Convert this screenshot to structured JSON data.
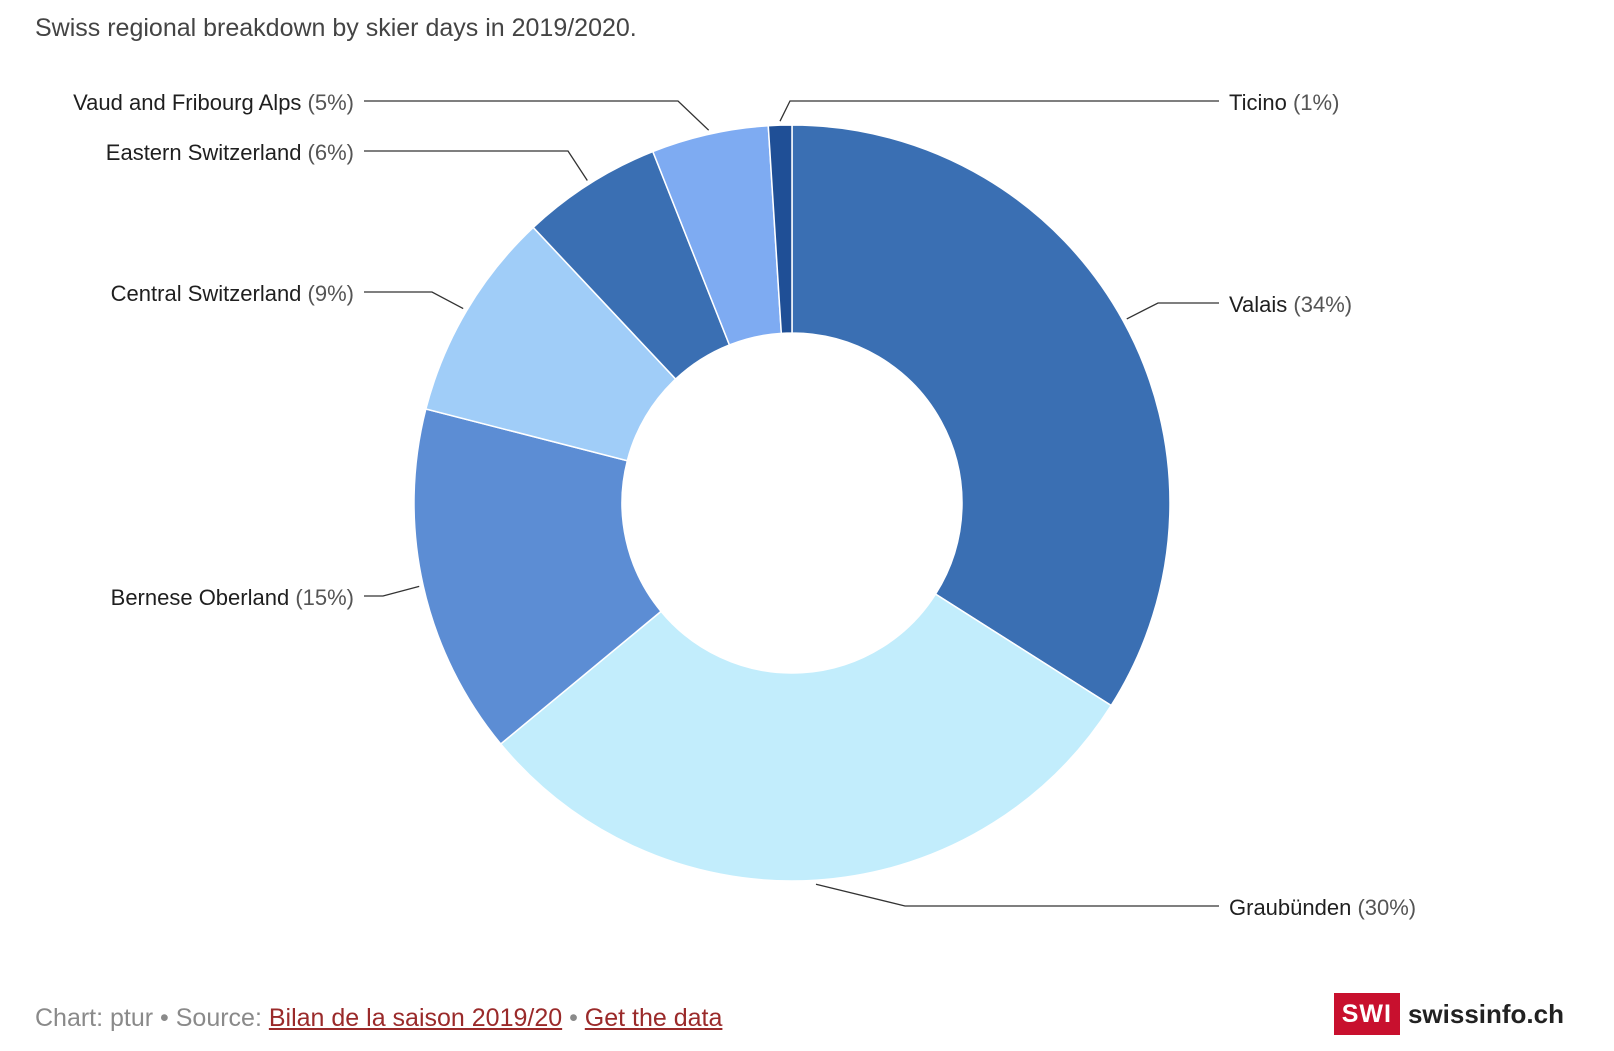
{
  "title": "Swiss regional breakdown by skier days in 2019/2020.",
  "chart_data": {
    "type": "pie",
    "donut": true,
    "start_angle": "12 o'clock, clockwise",
    "slices": [
      {
        "label": "Valais",
        "value": 34,
        "pct_text": "(34%)",
        "color": "#3a6fb3"
      },
      {
        "label": "Graubünden",
        "value": 30,
        "pct_text": "(30%)",
        "color": "#c2edfc"
      },
      {
        "label": "Bernese Oberland",
        "value": 15,
        "pct_text": "(15%)",
        "color": "#5c8dd4"
      },
      {
        "label": "Central Switzerland",
        "value": 9,
        "pct_text": "(9%)",
        "color": "#a0cdf8"
      },
      {
        "label": "Eastern Switzerland",
        "value": 6,
        "pct_text": "(6%)",
        "color": "#3a6fb3"
      },
      {
        "label": "Vaud and Fribourg Alps",
        "value": 5,
        "pct_text": "(5%)",
        "color": "#7eabf2"
      },
      {
        "label": "Ticino",
        "value": 1,
        "pct_text": "(1%)",
        "color": "#1f4f96"
      }
    ]
  },
  "footer": {
    "prefix": "Chart: ptur • Source: ",
    "source_link": "Bilan de la saison 2019/20",
    "separator": " • ",
    "data_link": "Get the data"
  },
  "brand": {
    "box": "SWI",
    "text": "swissinfo.ch"
  }
}
